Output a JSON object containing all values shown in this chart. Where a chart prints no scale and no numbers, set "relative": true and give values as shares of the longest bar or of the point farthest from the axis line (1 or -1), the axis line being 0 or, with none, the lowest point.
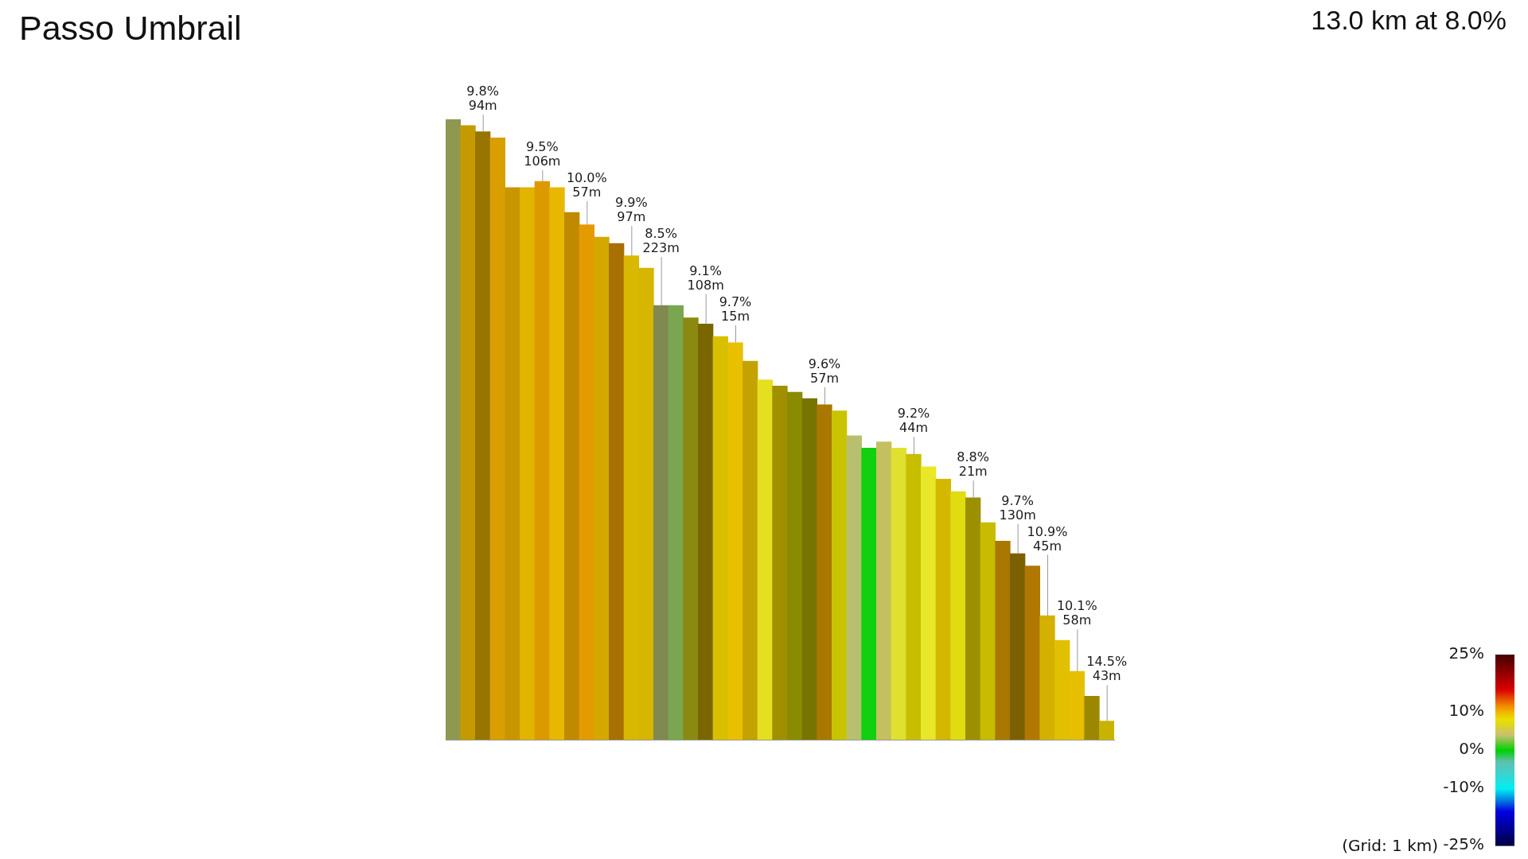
{
  "chart_data": {
    "type": "bar",
    "title": "Passo Umbrail",
    "subtitle": "13.0 km at 8.0%",
    "relative": true,
    "tick_labels": false,
    "categories": [
      null,
      null,
      null,
      null,
      null,
      null,
      null,
      null,
      null,
      null,
      null,
      null,
      null,
      null,
      null,
      null,
      null,
      null,
      null,
      null,
      null,
      null,
      null,
      null,
      null,
      null,
      null,
      null,
      null,
      null,
      null,
      null,
      null,
      null,
      null,
      null,
      null,
      null,
      null,
      null,
      null,
      null,
      null,
      null,
      null
    ],
    "values": [
      1.0,
      0.99,
      0.98,
      0.97,
      0.89,
      0.89,
      0.9,
      0.89,
      0.85,
      0.83,
      0.81,
      0.8,
      0.78,
      0.76,
      0.7,
      0.7,
      0.68,
      0.67,
      0.65,
      0.64,
      0.61,
      0.58,
      0.57,
      0.56,
      0.55,
      0.54,
      0.53,
      0.49,
      0.47,
      0.48,
      0.47,
      0.46,
      0.44,
      0.42,
      0.4,
      0.39,
      0.35,
      0.32,
      0.3,
      0.28,
      0.2,
      0.16,
      0.11,
      0.07,
      0.03
    ],
    "colors": [
      "#8f9850",
      "#c49a00",
      "#977500",
      "#d99f00",
      "#c99600",
      "#e1b400",
      "#dc9a00",
      "#e8b800",
      "#c08a00",
      "#e49b00",
      "#d4a800",
      "#a87000",
      "#d8b800",
      "#d6b600",
      "#808a50",
      "#7aa650",
      "#8a8a10",
      "#7a6600",
      "#d8c000",
      "#e8c000",
      "#c4a200",
      "#e4e020",
      "#a09000",
      "#8a8c00",
      "#787400",
      "#a87800",
      "#c8c400",
      "#b8c070",
      "#10d010",
      "#c4c060",
      "#e0e030",
      "#c8be00",
      "#e8e828",
      "#d4b800",
      "#e0dc10",
      "#9c9000",
      "#c8bc00",
      "#a87800",
      "#7c6000",
      "#b07800",
      "#d4b000",
      "#e0c000",
      "#e6c000",
      "#9c8800",
      "#c8b400"
    ],
    "clim": [
      -25,
      25
    ],
    "cticks": [
      {
        "value": 25,
        "label": "25%"
      },
      {
        "value": 10,
        "label": "10%"
      },
      {
        "value": 0,
        "label": "0%"
      },
      {
        "value": -10,
        "label": "-10%"
      },
      {
        "value": -25,
        "label": "-25%"
      }
    ],
    "annotations": [
      {
        "text": "9.8%\n94m",
        "y": 0.98
      },
      {
        "text": "9.5%\n106m",
        "y": 0.9
      },
      {
        "text": "10.0%\n57m",
        "y": 0.83
      },
      {
        "text": "9.9%\n97m",
        "y": 0.78
      },
      {
        "text": "8.5%\n223m",
        "y": 0.7
      },
      {
        "text": "9.1%\n108m",
        "y": 0.67
      },
      {
        "text": "9.7%\n15m",
        "y": 0.64
      },
      {
        "text": "9.6%\n57m",
        "y": 0.54
      },
      {
        "text": "9.2%\n44m",
        "y": 0.46
      },
      {
        "text": "8.8%\n21m",
        "y": 0.39
      },
      {
        "text": "9.7%\n130m",
        "y": 0.3
      },
      {
        "text": "10.9%\n45m",
        "y": 0.2
      },
      {
        "text": "10.1%\n58m",
        "y": 0.11
      },
      {
        "text": "14.5%\n43m",
        "y": 0.03
      },
      "(Grid: 1 km)"
    ]
  }
}
